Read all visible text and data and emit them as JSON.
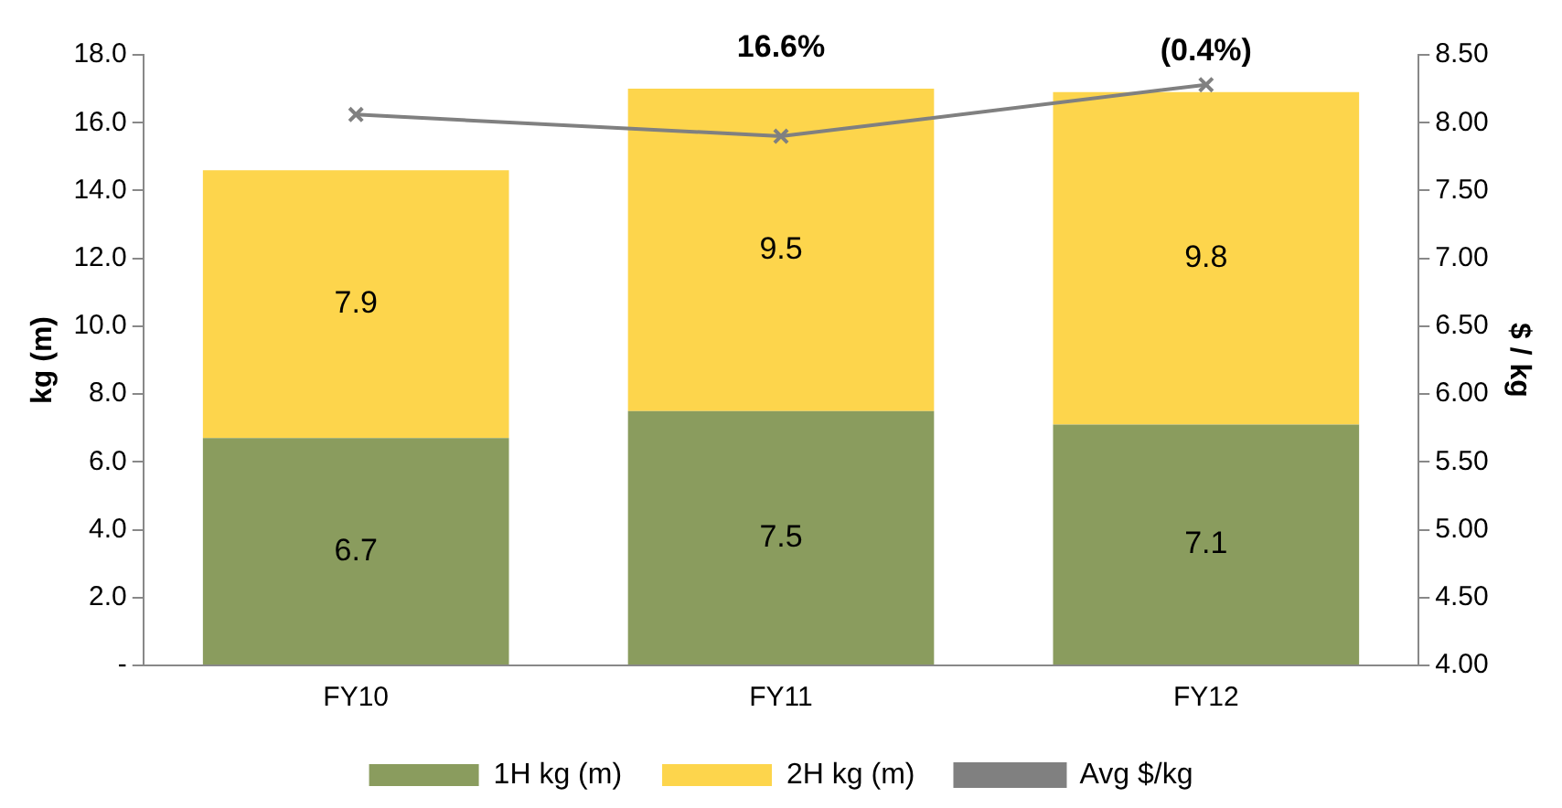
{
  "chart_data": {
    "type": "bar",
    "stacked": true,
    "categories": [
      "FY10",
      "FY11",
      "FY12"
    ],
    "series": [
      {
        "name": "1H kg (m)",
        "color": "#8a9c5e",
        "values": [
          6.7,
          7.5,
          7.1
        ],
        "value_labels": [
          "6.7",
          "7.5",
          "7.1"
        ]
      },
      {
        "name": "2H kg (m)",
        "color": "#fdd54c",
        "values": [
          7.9,
          9.5,
          9.8
        ],
        "value_labels": [
          "7.9",
          "9.5",
          "9.8"
        ]
      },
      {
        "name": "Avg $/kg",
        "color": "#808080",
        "type": "line",
        "axis": "y2",
        "marker": "cross",
        "values": [
          8.06,
          7.9,
          8.28
        ]
      }
    ],
    "ylabel": "kg (m)",
    "y2label": "$ / kg",
    "ylim": [
      0,
      18
    ],
    "yticks": [
      {
        "value": 0,
        "label": "-"
      },
      {
        "value": 2,
        "label": "2.0"
      },
      {
        "value": 4,
        "label": "4.0"
      },
      {
        "value": 6,
        "label": "6.0"
      },
      {
        "value": 8,
        "label": "8.0"
      },
      {
        "value": 10,
        "label": "10.0"
      },
      {
        "value": 12,
        "label": "12.0"
      },
      {
        "value": 14,
        "label": "14.0"
      },
      {
        "value": 16,
        "label": "16.0"
      },
      {
        "value": 18,
        "label": "18.0"
      }
    ],
    "y2lim": [
      4,
      8.5
    ],
    "y2ticks": [
      {
        "value": 4,
        "label": "4.00"
      },
      {
        "value": 4.5,
        "label": "4.50"
      },
      {
        "value": 5,
        "label": "5.00"
      },
      {
        "value": 5.5,
        "label": "5.50"
      },
      {
        "value": 6,
        "label": "6.00"
      },
      {
        "value": 6.5,
        "label": "6.50"
      },
      {
        "value": 7,
        "label": "7.00"
      },
      {
        "value": 7.5,
        "label": "7.50"
      },
      {
        "value": 8,
        "label": "8.00"
      },
      {
        "value": 8.5,
        "label": "8.50"
      }
    ],
    "annotations": [
      {
        "text": "16.6%",
        "x": "FY11",
        "y": 17.0
      },
      {
        "text": "(0.4%)",
        "x": "FY12",
        "y": 16.9
      }
    ],
    "grid": false,
    "legend": "bottom"
  }
}
